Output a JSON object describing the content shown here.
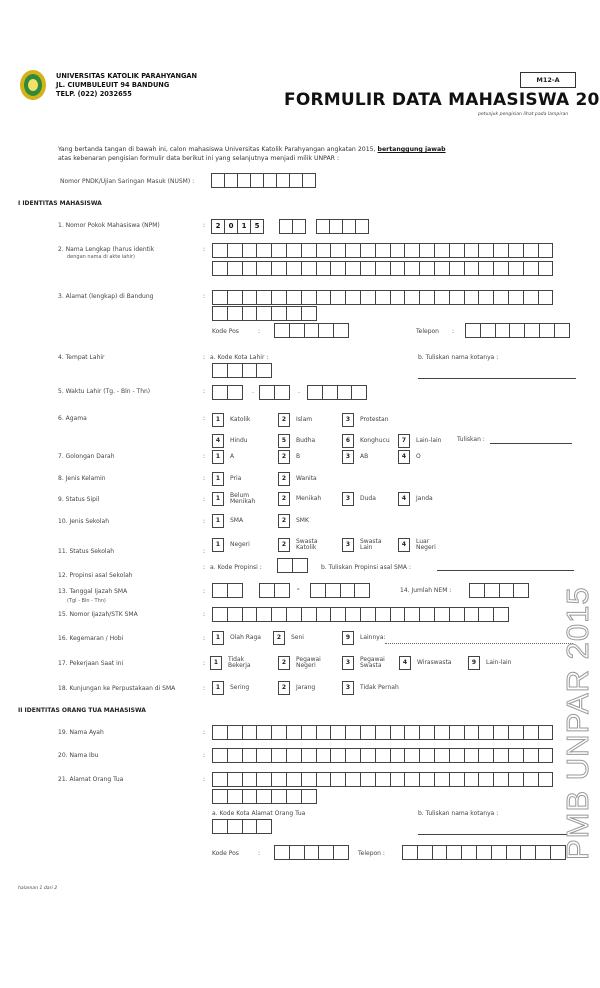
{
  "header": {
    "university": "UNIVERSITAS KATOLIK PARAHYANGAN",
    "address": "JL. CIUMBULEUIT 94 BANDUNG",
    "phone": "TELP. (022) 2032655",
    "form_code": "M12-A",
    "title": "FORMULIR DATA MAHASISWA 2015",
    "instruction": "petunjuk pengisian lihat pada lampiran"
  },
  "intro": {
    "line1": "Yang bertanda tangan di bawah ini, calon mahasiswa Universitas Katolik Parahyangan angkatan 2015, ",
    "emphasis": "bertanggung jawab",
    "line2": "atas kebenaran pengisian formulir data berikut ini yang selanjutnya menjadi milik UNPAR :",
    "nusm_label": "Nomor PNDK/Ujian Saringan Masuk (NUSM) :"
  },
  "section1": "I IDENTITAS MAHASISWA",
  "section2": "II IDENTITAS ORANG TUA MAHASISWA",
  "colon": ":",
  "items": {
    "npm": {
      "label": "1. Nomor Pokok Mahasiswa (NPM)",
      "prefill": [
        "2",
        "0",
        "1",
        "5"
      ]
    },
    "nama": {
      "label": "2. Nama Lengkap (harus identik",
      "sub": "dengan nama di akte lahir)"
    },
    "alamat": {
      "label": "3. Alamat (lengkap) di Bandung",
      "kode_pos": "Kode Pos",
      "telepon": "Telepon"
    },
    "tempat": {
      "label": "4. Tempat Lahir",
      "a": "a. Kode Kota Lahir :",
      "b": "b. Tuliskan nama kotanya :"
    },
    "waktu": {
      "label": "5. Waktu Lahir (Tg. - Bln - Thn)",
      "sep": "."
    },
    "agama": {
      "label": "6. Agama",
      "options": [
        {
          "n": "1",
          "t": "Katolik"
        },
        {
          "n": "2",
          "t": "Islam"
        },
        {
          "n": "3",
          "t": "Protestan"
        },
        {
          "n": "4",
          "t": "Hindu"
        },
        {
          "n": "5",
          "t": "Budha"
        },
        {
          "n": "6",
          "t": "Konghucu"
        },
        {
          "n": "7",
          "t": "Lain-lain"
        }
      ],
      "tuliskan": "Tuliskan :"
    },
    "darah": {
      "label": "7. Golongan Darah",
      "options": [
        {
          "n": "1",
          "t": "A"
        },
        {
          "n": "2",
          "t": "B"
        },
        {
          "n": "3",
          "t": "AB"
        },
        {
          "n": "4",
          "t": "O"
        }
      ]
    },
    "kelamin": {
      "label": "8. Jenis Kelamin",
      "options": [
        {
          "n": "1",
          "t": "Pria"
        },
        {
          "n": "2",
          "t": "Wanita"
        }
      ]
    },
    "sipil": {
      "label": "9. Status Sipil",
      "options": [
        {
          "n": "1",
          "t": "Belum Menikah"
        },
        {
          "n": "2",
          "t": "Menikah"
        },
        {
          "n": "3",
          "t": "Duda"
        },
        {
          "n": "4",
          "t": "Janda"
        }
      ]
    },
    "jenis_sekolah": {
      "label": "10. Jenis Sekolah",
      "options": [
        {
          "n": "1",
          "t": "SMA"
        },
        {
          "n": "2",
          "t": "SMK"
        }
      ]
    },
    "status_sekolah": {
      "label": "11. Status Sekolah",
      "options": [
        {
          "n": "1",
          "t": "Negeri"
        },
        {
          "n": "2",
          "t": "Swasta Katolik"
        },
        {
          "n": "3",
          "t": "Swasta Lain"
        },
        {
          "n": "4",
          "t": "Luar Negeri"
        }
      ]
    },
    "propinsi": {
      "label": "12. Propinsi asal Sekolah",
      "a": "a. Kode Propinsi :",
      "b": "b. Tuliskan Propinsi asal SMA :"
    },
    "ijazah_tgl": {
      "label": "13. Tanggal Ijazah SMA",
      "sub": "(Tgl - Bln - Thn)",
      "sep": "-"
    },
    "nem": {
      "label": "14. Jumlah NEM :"
    },
    "ijazah_no": {
      "label": "15. Nomor Ijazah/STK SMA"
    },
    "hobi": {
      "label": "16. Kegemaran / Hobi",
      "options": [
        {
          "n": "1",
          "t": "Olah Raga"
        },
        {
          "n": "2",
          "t": "Seni"
        },
        {
          "n": "9",
          "t": "Lainnya:"
        }
      ]
    },
    "pekerjaan": {
      "label": "17. Pekerjaan Saat ini",
      "options": [
        {
          "n": "1",
          "t": "Tidak Bekerja"
        },
        {
          "n": "2",
          "t": "Pegawai Negeri"
        },
        {
          "n": "3",
          "t": "Pegawai Swasta"
        },
        {
          "n": "4",
          "t": "Wiraswasta"
        },
        {
          "n": "9",
          "t": "Lain-lain"
        }
      ]
    },
    "perpus": {
      "label": "18. Kunjungan ke Perpustakaan di SMA",
      "options": [
        {
          "n": "1",
          "t": "Sering"
        },
        {
          "n": "2",
          "t": "Jarang"
        },
        {
          "n": "3",
          "t": "Tidak Pernah"
        }
      ]
    },
    "ayah": {
      "label": "19. Nama Ayah"
    },
    "ibu": {
      "label": "20. Nama Ibu"
    },
    "alamat_ortu": {
      "label": "21. Alamat Orang Tua",
      "a": "a. Kode Kota Alamat Orang Tua",
      "b": "b. Tuliskan nama kotanya :",
      "kode_pos": "Kode Pos",
      "telepon": "Telepon :"
    }
  },
  "footer": "halaman 1 dari 2",
  "watermark": "PMB UNPAR 2015"
}
